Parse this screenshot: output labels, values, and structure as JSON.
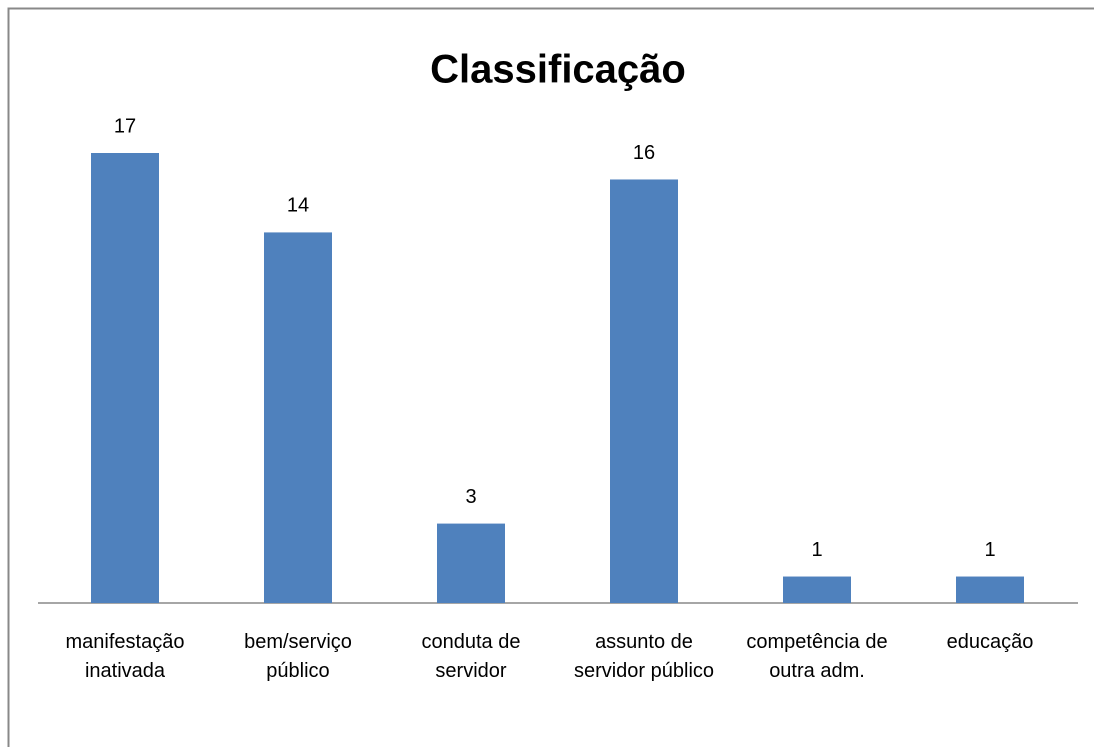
{
  "chart_data": {
    "type": "bar",
    "title": "Classificação",
    "categories": [
      "manifestação inativada",
      "bem/serviço público",
      "conduta de servidor",
      "assunto de servidor público",
      "competência de outra adm.",
      "educação"
    ],
    "values": [
      17,
      14,
      3,
      16,
      1,
      1
    ],
    "color": "#4f81bd"
  }
}
